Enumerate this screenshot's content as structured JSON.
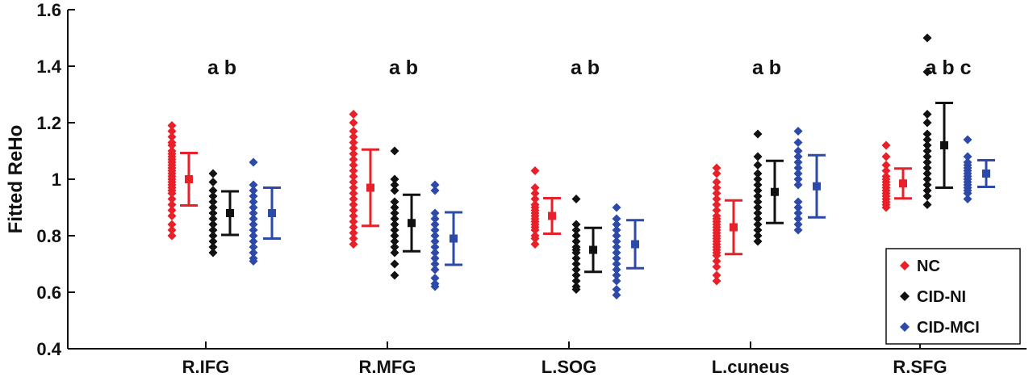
{
  "chart_data": {
    "type": "scatter",
    "title": "",
    "xlabel": "",
    "ylabel": "Fitted ReHo",
    "ylim": [
      0.4,
      1.6
    ],
    "yticks": [
      "0.4",
      "0.6",
      "0.8",
      "1",
      "1.2",
      "1.4",
      "1.6"
    ],
    "grid": false,
    "legend_position": "bottom-right",
    "categories": [
      "R.IFG",
      "R.MFG",
      "L.SOG",
      "L.cuneus",
      "R.SFG"
    ],
    "annotations": [
      "a b",
      "a b",
      "a b",
      "a b",
      "a b c"
    ],
    "series": [
      {
        "name": "NC",
        "color": "#e8202a",
        "means": [
          1.0,
          0.97,
          0.87,
          0.83,
          0.985
        ],
        "sd": [
          0.093,
          0.135,
          0.063,
          0.095,
          0.053
        ],
        "points": [
          [
            1.19,
            1.17,
            1.15,
            1.13,
            1.12,
            1.1,
            1.09,
            1.08,
            1.07,
            1.06,
            1.05,
            1.04,
            1.03,
            1.02,
            1.01,
            1.0,
            0.99,
            0.98,
            0.97,
            0.96,
            0.95,
            0.93,
            0.91,
            0.89,
            0.87,
            0.84,
            0.82,
            0.8
          ],
          [
            1.23,
            1.2,
            1.17,
            1.15,
            1.13,
            1.11,
            1.09,
            1.07,
            1.05,
            1.03,
            1.01,
            0.99,
            0.97,
            0.95,
            0.93,
            0.91,
            0.89,
            0.87,
            0.85,
            0.83,
            0.81,
            0.79,
            0.77
          ],
          [
            1.03,
            0.97,
            0.95,
            0.93,
            0.91,
            0.9,
            0.89,
            0.88,
            0.87,
            0.86,
            0.85,
            0.84,
            0.83,
            0.82,
            0.8,
            0.79,
            0.77
          ],
          [
            1.04,
            1.02,
            0.99,
            0.97,
            0.95,
            0.93,
            0.91,
            0.89,
            0.87,
            0.86,
            0.85,
            0.84,
            0.83,
            0.82,
            0.81,
            0.8,
            0.79,
            0.78,
            0.77,
            0.76,
            0.75,
            0.74,
            0.73,
            0.71,
            0.69,
            0.66,
            0.64
          ],
          [
            1.12,
            1.08,
            1.05,
            1.03,
            1.01,
            1.0,
            0.99,
            0.98,
            0.97,
            0.96,
            0.95,
            0.94,
            0.93,
            0.92,
            0.91,
            0.9
          ]
        ]
      },
      {
        "name": "CID-NI",
        "color": "#111111",
        "means": [
          0.88,
          0.845,
          0.75,
          0.955,
          1.12
        ],
        "sd": [
          0.077,
          0.1,
          0.078,
          0.11,
          0.15
        ],
        "points": [
          [
            1.02,
            0.99,
            0.96,
            0.94,
            0.92,
            0.9,
            0.88,
            0.86,
            0.84,
            0.82,
            0.8,
            0.78,
            0.76,
            0.74
          ],
          [
            1.1,
            1.0,
            0.98,
            0.96,
            0.92,
            0.9,
            0.88,
            0.86,
            0.84,
            0.82,
            0.8,
            0.78,
            0.76,
            0.74,
            0.7,
            0.66
          ],
          [
            0.93,
            0.84,
            0.82,
            0.8,
            0.78,
            0.76,
            0.75,
            0.74,
            0.72,
            0.7,
            0.68,
            0.66,
            0.64,
            0.62,
            0.61
          ],
          [
            1.16,
            1.08,
            1.05,
            1.02,
            1.0,
            0.98,
            0.96,
            0.94,
            0.92,
            0.9,
            0.88,
            0.86,
            0.84,
            0.82,
            0.8,
            0.78
          ],
          [
            1.5,
            1.38,
            1.23,
            1.2,
            1.16,
            1.14,
            1.12,
            1.1,
            1.08,
            1.06,
            1.04,
            1.02,
            1.0,
            0.98,
            0.96,
            0.94,
            0.91
          ]
        ]
      },
      {
        "name": "CID-MCI",
        "color": "#2e4aa8",
        "means": [
          0.88,
          0.79,
          0.77,
          0.975,
          1.02
        ],
        "sd": [
          0.09,
          0.093,
          0.085,
          0.11,
          0.047
        ],
        "points": [
          [
            1.06,
            0.98,
            0.96,
            0.94,
            0.92,
            0.9,
            0.88,
            0.86,
            0.84,
            0.82,
            0.8,
            0.78,
            0.76,
            0.74,
            0.72,
            0.71
          ],
          [
            0.98,
            0.96,
            0.88,
            0.86,
            0.84,
            0.82,
            0.8,
            0.78,
            0.76,
            0.74,
            0.72,
            0.7,
            0.68,
            0.65,
            0.63,
            0.62
          ],
          [
            0.9,
            0.86,
            0.84,
            0.82,
            0.8,
            0.78,
            0.76,
            0.74,
            0.72,
            0.7,
            0.68,
            0.66,
            0.64,
            0.61,
            0.59
          ],
          [
            1.17,
            1.13,
            1.1,
            1.08,
            1.06,
            1.04,
            1.02,
            1.0,
            0.98,
            0.92,
            0.9,
            0.88,
            0.86,
            0.84,
            0.82
          ],
          [
            1.14,
            1.08,
            1.06,
            1.05,
            1.04,
            1.03,
            1.02,
            1.01,
            1.0,
            0.99,
            0.98,
            0.97,
            0.96,
            0.95,
            0.93
          ]
        ]
      }
    ]
  }
}
